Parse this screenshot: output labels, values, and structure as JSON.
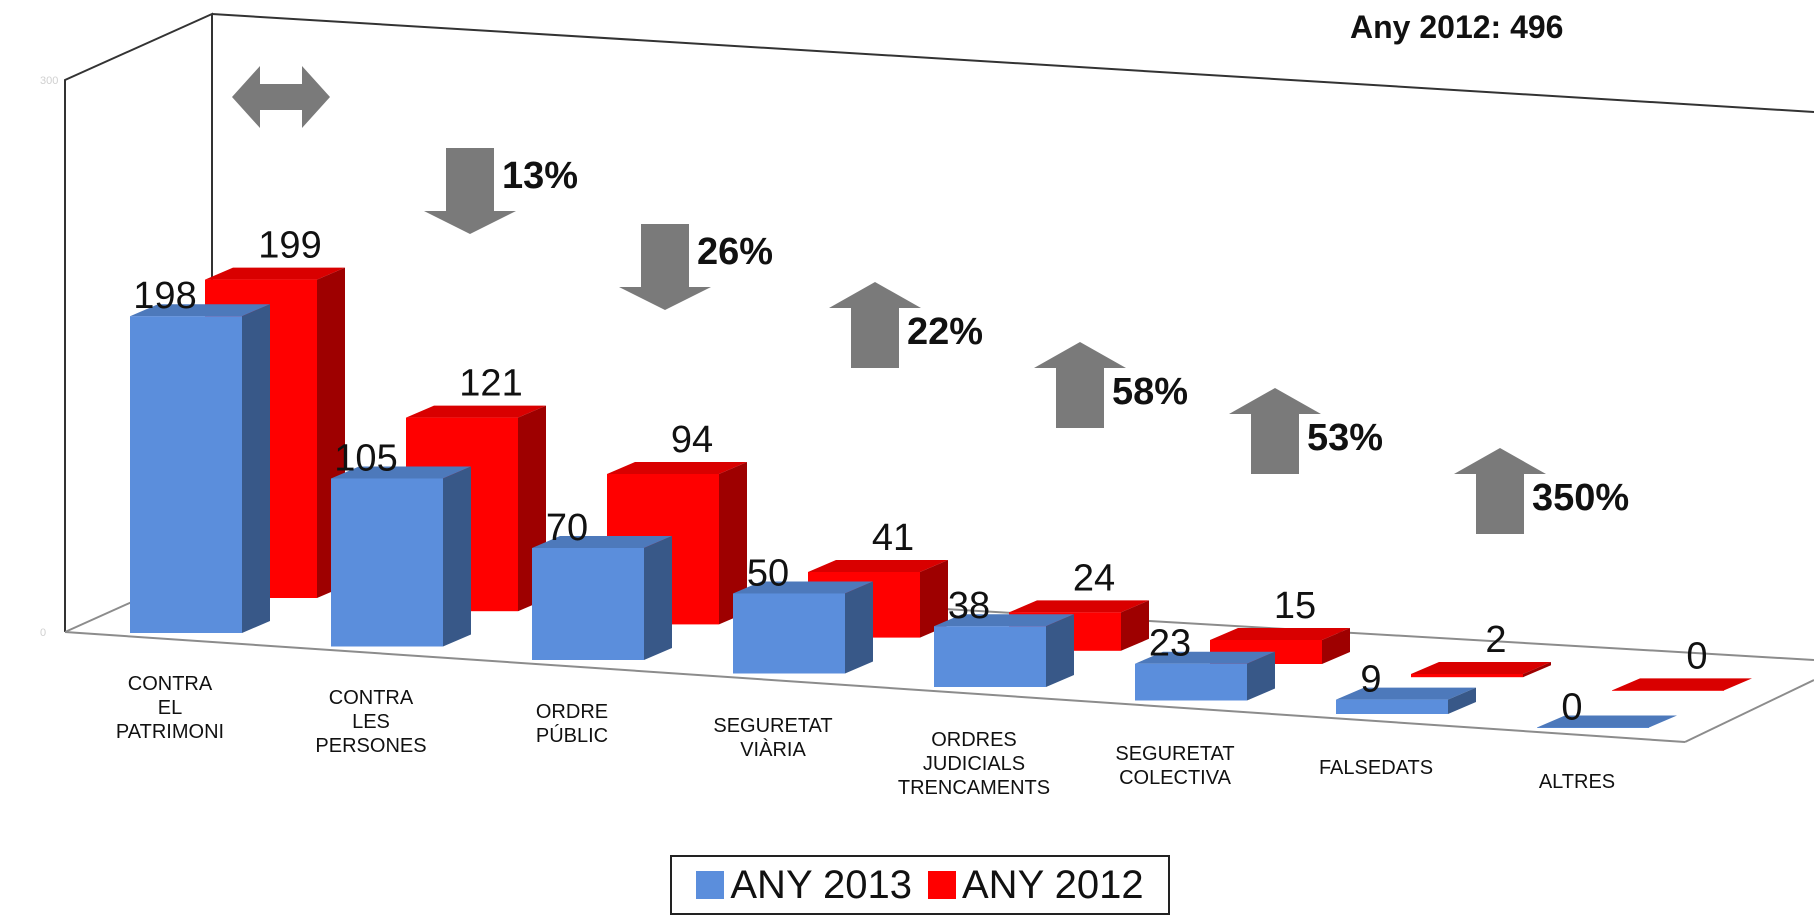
{
  "top_note": "Any 2012: 496",
  "chart_data": {
    "type": "bar",
    "categories": [
      [
        "CONTRA",
        "EL",
        "PATRIMONI"
      ],
      [
        "CONTRA",
        "LES",
        "PERSONES"
      ],
      [
        "ORDRE",
        "PÚBLIC"
      ],
      [
        "SEGURETAT",
        "VIÀRIA"
      ],
      [
        "ORDRES",
        "JUDICIALS",
        "TRENCAMENTS"
      ],
      [
        "SEGURETAT",
        "COLECTIVA"
      ],
      [
        "FALSEDATS"
      ],
      [
        "ALTRES"
      ]
    ],
    "series": [
      {
        "name": "ANY 2013",
        "color": "#5b8edc",
        "values": [
          198,
          105,
          70,
          50,
          38,
          23,
          9,
          0
        ]
      },
      {
        "name": "ANY 2012",
        "color": "#ff0000",
        "values": [
          199,
          121,
          94,
          41,
          24,
          15,
          2,
          0
        ]
      }
    ],
    "y_axis_ticks": [
      0,
      300
    ],
    "ylim": [
      0,
      300
    ],
    "changes": [
      {
        "direction": "both",
        "label": ""
      },
      {
        "direction": "down",
        "label": "13%"
      },
      {
        "direction": "down",
        "label": "26%"
      },
      {
        "direction": "up",
        "label": "22%"
      },
      {
        "direction": "up",
        "label": "58%"
      },
      {
        "direction": "up",
        "label": "53%"
      },
      {
        "direction": "up",
        "label": "350%"
      }
    ],
    "legend_position": "bottom"
  }
}
